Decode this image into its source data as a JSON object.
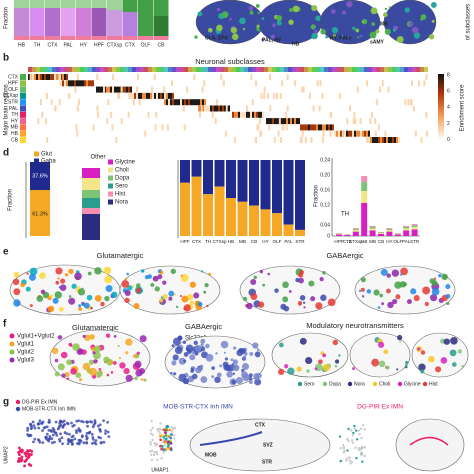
{
  "panel_labels": [
    "b",
    "d",
    "e",
    "f",
    "g"
  ],
  "panel_a": {
    "y_label": "Fraction",
    "regions": [
      "HB",
      "TH",
      "CTX",
      "PAL",
      "HY",
      "HPF",
      "CTXsp",
      "CTX",
      "OLF",
      "CB"
    ],
    "annotations": [
      "CLA, EPd",
      "PAL, HY",
      "HB",
      "HY, PALv",
      "sAMY",
      "MB"
    ],
    "right_label": "of subclasses"
  },
  "panel_b": {
    "title": "Neuronal subclasses",
    "y_label": "Major brain regions",
    "rows": [
      "CTX",
      "HPF",
      "OLF",
      "CTXsp",
      "STR",
      "PAL",
      "TH",
      "HY",
      "MB",
      "HB",
      "CB"
    ],
    "colorbar_label": "Enrichment score",
    "colorbar_ticks": [
      "8",
      "6",
      "4",
      "2",
      "0"
    ]
  },
  "panel_d": {
    "legend_main": [
      {
        "name": "Glut",
        "color": "#f4a825"
      },
      {
        "name": "Gaba",
        "color": "#1f2a8c"
      }
    ],
    "percent_labels": [
      "37.6%",
      "61.3%"
    ],
    "other_title": "Other",
    "legend_other": [
      {
        "name": "Glycine",
        "color": "#d81fc0"
      },
      {
        "name": "Choli",
        "color": "#f3e58a"
      },
      {
        "name": "Dopa",
        "color": "#7cc576"
      },
      {
        "name": "Sero",
        "color": "#2a9d8f"
      },
      {
        "name": "Hist",
        "color": "#f48fb1"
      },
      {
        "name": "Nora",
        "color": "#2c2c80"
      }
    ],
    "y_label": "Fraction",
    "regions": [
      "HPF",
      "CTX",
      "TH",
      "CTXsp",
      "HB",
      "MB",
      "CB",
      "HY",
      "OLF",
      "PAL",
      "STR"
    ],
    "right_ticks": [
      "0.24",
      "0.20",
      "0.16",
      "0.12",
      "0.04",
      "0"
    ],
    "right_y_label": "Fraction",
    "right_regions": [
      "HPF",
      "CTX",
      "CTXsp",
      "HB",
      "MB",
      "CB",
      "HY",
      "OLF",
      "PAL",
      "STR"
    ],
    "right_annotation": "TH"
  },
  "panel_e": {
    "left_title": "Glutamatergic",
    "right_title": "GABAergic"
  },
  "panel_f": {
    "legend_glut": [
      {
        "name": "Vglut1+Vglut2",
        "color": "#e91e8c"
      },
      {
        "name": "Vglut1",
        "color": "#f4a825"
      },
      {
        "name": "Vglut2",
        "color": "#8bc34a"
      },
      {
        "name": "Vglut3",
        "color": "#9c27b0"
      }
    ],
    "glut_title": "Glutamatergic",
    "gaba_title": "GABAergic",
    "gaba_legend": {
      "name": "Slc32a1",
      "color": "#3f51b5"
    },
    "mod_title": "Modulatory neurotransmitters",
    "legend_mod": [
      {
        "name": "Sero",
        "color": "#2a9d8f"
      },
      {
        "name": "Dopa",
        "color": "#7cc576"
      },
      {
        "name": "Nora",
        "color": "#2c2c80"
      },
      {
        "name": "Choli",
        "color": "#f3c623"
      },
      {
        "name": "Glycine",
        "color": "#d81fc0"
      },
      {
        "name": "Hist",
        "color": "#e53935"
      }
    ]
  },
  "panel_g": {
    "legend": [
      {
        "name": "DG-PIR Ex IMN",
        "color": "#e91e63"
      },
      {
        "name": "MOB-STR-CTX Inh IMN",
        "color": "#3949ab"
      }
    ],
    "mid_title": "MOB-STR-CTX Inh IMN",
    "right_title": "DG-PIR Ex IMN",
    "axis_labels": [
      "UMAP2",
      "UMAP1"
    ],
    "brain_labels": [
      "CTX",
      "SVZ",
      "STR",
      "MOB"
    ]
  }
}
